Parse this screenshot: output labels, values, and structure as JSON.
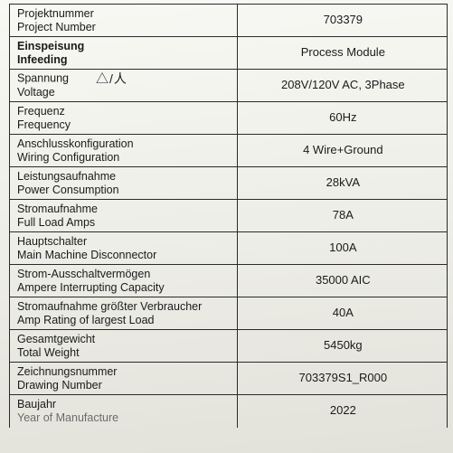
{
  "table": {
    "border_color": "#2a2a2a",
    "background_color": "#f0f0ea",
    "text_color": "#1a1a1a",
    "label_fontsize": 12.5,
    "value_fontsize": 13,
    "rows": [
      {
        "de": "Projektnummer",
        "en": "Project Number",
        "value": "703379",
        "section": false
      },
      {
        "de": "Einspeisung",
        "en": "Infeeding",
        "value": "Process Module",
        "section": true
      },
      {
        "de": "Spannung",
        "en": "Voltage",
        "value": "208V/120V AC, 3Phase",
        "section": false,
        "symbols": "△/人"
      },
      {
        "de": "Frequenz",
        "en": "Frequency",
        "value": "60Hz",
        "section": false
      },
      {
        "de": "Anschlusskonfiguration",
        "en": "Wiring Configuration",
        "value": "4 Wire+Ground",
        "section": false
      },
      {
        "de": "Leistungsaufnahme",
        "en": "Power Consumption",
        "value": "28kVA",
        "section": false
      },
      {
        "de": "Stromaufnahme",
        "en": "Full Load Amps",
        "value": "78A",
        "section": false
      },
      {
        "de": "Hauptschalter",
        "en": "Main Machine Disconnector",
        "value": "100A",
        "section": false
      },
      {
        "de": "Strom-Ausschaltvermögen",
        "en": "Ampere Interrupting Capacity",
        "value": "35000 AIC",
        "section": false
      },
      {
        "de": "Stromaufnahme größter Verbraucher",
        "en": "Amp Rating of largest Load",
        "value": "40A",
        "section": false
      },
      {
        "de": "Gesamtgewicht",
        "en": "Total Weight",
        "value": "5450kg",
        "section": false
      },
      {
        "de": "Zeichnungsnummer",
        "en": "Drawing Number",
        "value": "703379S1_R000",
        "section": false
      },
      {
        "de": "Baujahr",
        "en": "Year of Manufacture",
        "value": "2022",
        "section": false
      }
    ]
  }
}
